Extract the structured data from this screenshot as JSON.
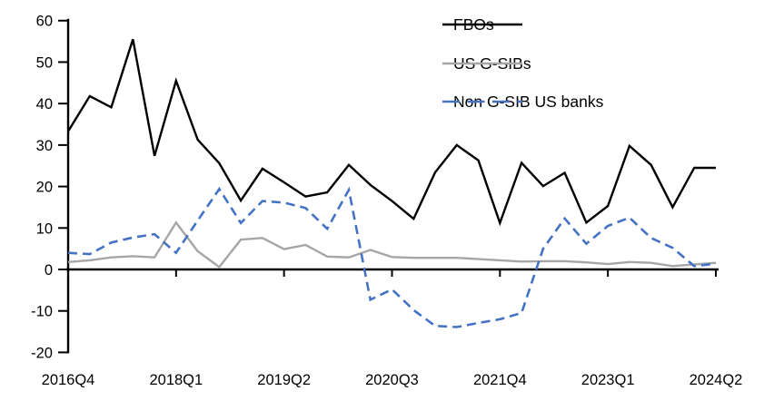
{
  "chart_data": {
    "type": "line",
    "title": "",
    "xlabel": "",
    "ylabel": "",
    "ylim": [
      -20,
      60
    ],
    "grid": false,
    "legend_position": "top-right",
    "categories": [
      "2016Q4",
      "2017Q1",
      "2017Q2",
      "2017Q3",
      "2017Q4",
      "2018Q1",
      "2018Q2",
      "2018Q3",
      "2018Q4",
      "2019Q1",
      "2019Q2",
      "2019Q3",
      "2019Q4",
      "2020Q1",
      "2020Q2",
      "2020Q3",
      "2020Q4",
      "2021Q1",
      "2021Q2",
      "2021Q3",
      "2021Q4",
      "2022Q1",
      "2022Q2",
      "2022Q3",
      "2022Q4",
      "2023Q1",
      "2023Q2",
      "2023Q3",
      "2023Q4",
      "2024Q1",
      "2024Q2"
    ],
    "x_tick_labels": [
      "2016Q4",
      "2018Q1",
      "2019Q2",
      "2020Q3",
      "2021Q4",
      "2023Q1",
      "2024Q2"
    ],
    "x_tick_indices": [
      0,
      5,
      10,
      15,
      20,
      25,
      30
    ],
    "y_ticks": [
      60,
      50,
      40,
      30,
      20,
      10,
      0,
      -10,
      -20
    ],
    "series": [
      {
        "name": "FBOs",
        "color": "#000000",
        "style": "solid",
        "values": [
          33.3,
          41.8,
          39.1,
          55.5,
          27.4,
          45.5,
          31.3,
          25.6,
          16.6,
          24.3,
          21.0,
          17.6,
          18.6,
          25.2,
          20.4,
          16.5,
          12.2,
          23.4,
          30.0,
          26.3,
          11.2,
          25.7,
          20.1,
          23.3,
          11.3,
          15.3,
          29.8,
          25.2,
          15.0,
          24.5,
          24.5
        ]
      },
      {
        "name": "US G-SIBs",
        "color": "#a6a6a6",
        "style": "solid",
        "values": [
          1.8,
          2.2,
          2.9,
          3.2,
          2.9,
          11.3,
          4.4,
          0.6,
          7.2,
          7.6,
          4.9,
          5.9,
          3.1,
          2.9,
          4.7,
          3.0,
          2.8,
          2.8,
          2.8,
          2.5,
          2.2,
          1.9,
          2.0,
          2.0,
          1.7,
          1.3,
          1.8,
          1.6,
          0.8,
          1.2,
          1.6
        ]
      },
      {
        "name": "Non G-SIB US banks",
        "color": "#4472c4",
        "style": "dashed",
        "values": [
          4.0,
          3.7,
          6.5,
          7.7,
          8.5,
          4.0,
          11.8,
          19.4,
          11.2,
          16.5,
          16.1,
          14.8,
          9.8,
          19.2,
          -7.3,
          -4.8,
          -9.8,
          -13.6,
          -13.9,
          -12.9,
          -12.0,
          -10.5,
          5.0,
          12.3,
          6.2,
          10.5,
          12.5,
          7.6,
          5.2,
          0.8,
          1.4
        ]
      }
    ]
  }
}
